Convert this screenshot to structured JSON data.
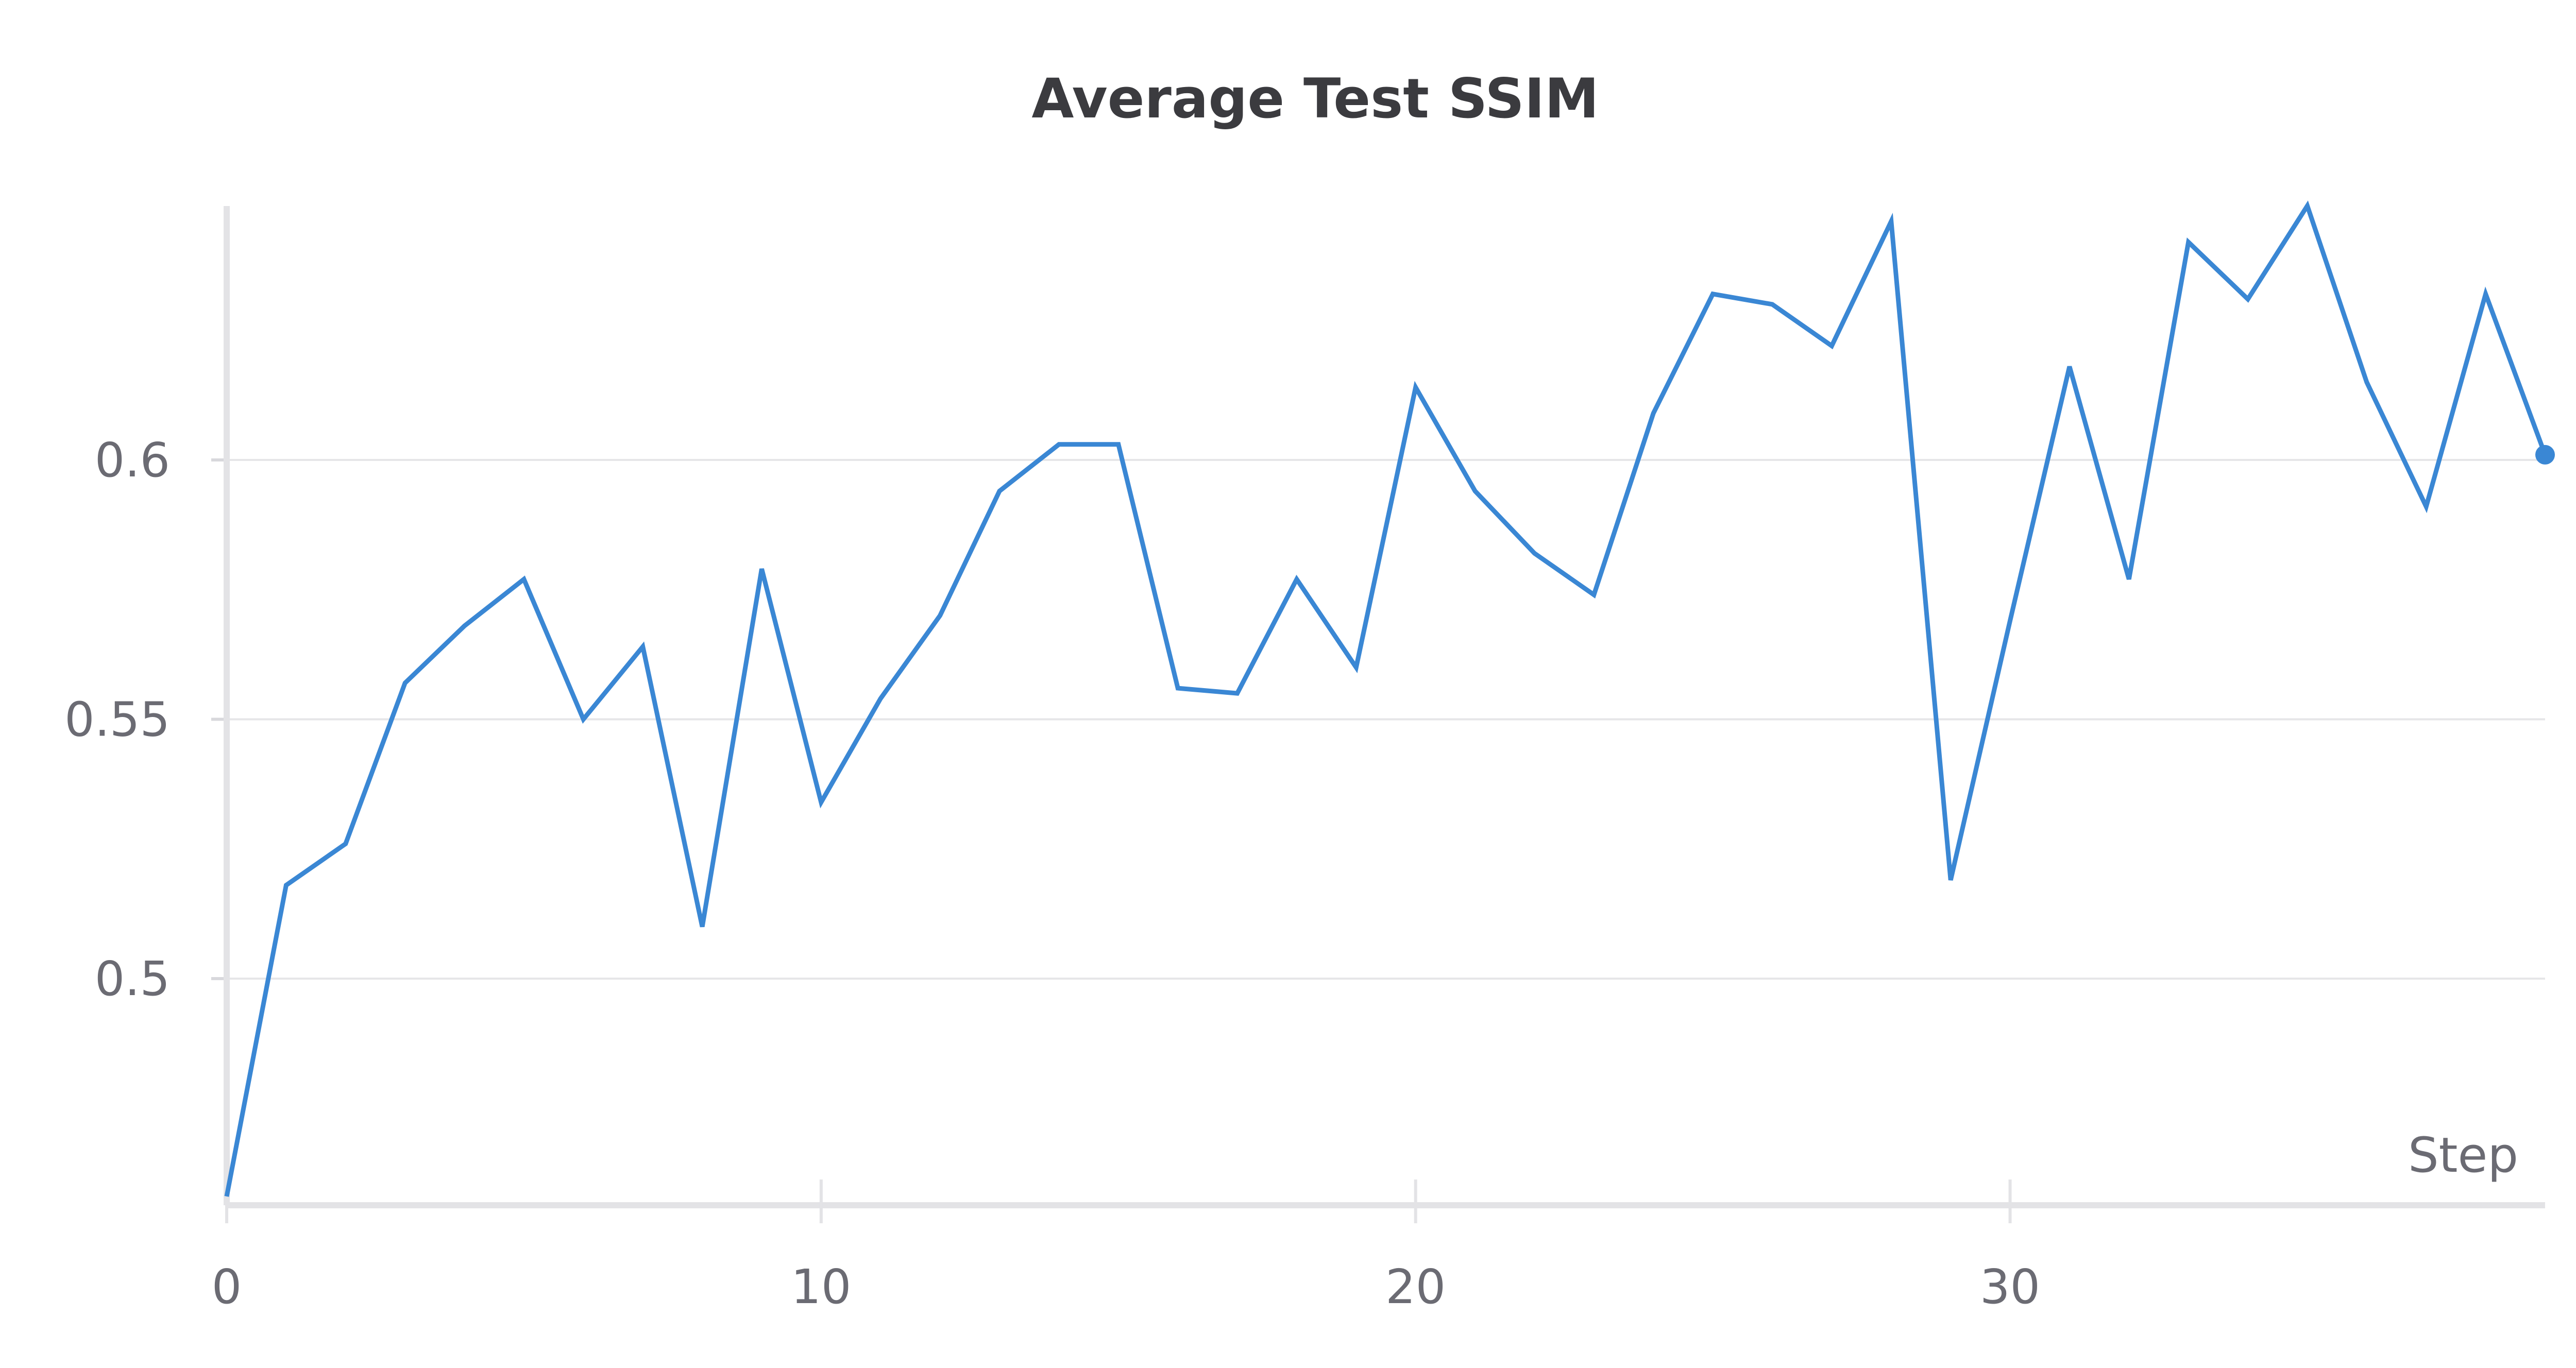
{
  "chart_data": {
    "type": "line",
    "title": "Average Test SSIM",
    "xlabel": "Step",
    "ylabel": "",
    "xlim": [
      0,
      39
    ],
    "ylim": [
      0.457,
      0.648
    ],
    "x_ticks": [
      0,
      10,
      20,
      30
    ],
    "x_tick_labels": [
      "0",
      "10",
      "20",
      "30"
    ],
    "y_ticks": [
      0.5,
      0.55,
      0.6
    ],
    "y_tick_labels": [
      "0.5",
      "0.55",
      "0.6"
    ],
    "grid": true,
    "legend": "none",
    "line_color": "#3a87d4",
    "series": [
      {
        "x": [
          0,
          1,
          2,
          3,
          4,
          5,
          6,
          7,
          8,
          9,
          10,
          11,
          12,
          13,
          14,
          15,
          16,
          17,
          18,
          19,
          20,
          21,
          22,
          23,
          24,
          25,
          26,
          27,
          28,
          29,
          30,
          31,
          32,
          33,
          34,
          35,
          36,
          37,
          38,
          39
        ],
        "values": [
          0.458,
          0.518,
          0.526,
          0.557,
          0.568,
          0.577,
          0.55,
          0.564,
          0.51,
          0.579,
          0.534,
          0.554,
          0.57,
          0.594,
          0.603,
          0.603,
          0.556,
          0.555,
          0.577,
          0.56,
          0.614,
          0.594,
          0.582,
          0.574,
          0.609,
          0.632,
          0.63,
          0.622,
          0.646,
          0.519,
          0.569,
          0.618,
          0.577,
          0.642,
          0.631,
          0.649,
          0.615,
          0.591,
          0.632,
          0.601
        ]
      }
    ]
  }
}
